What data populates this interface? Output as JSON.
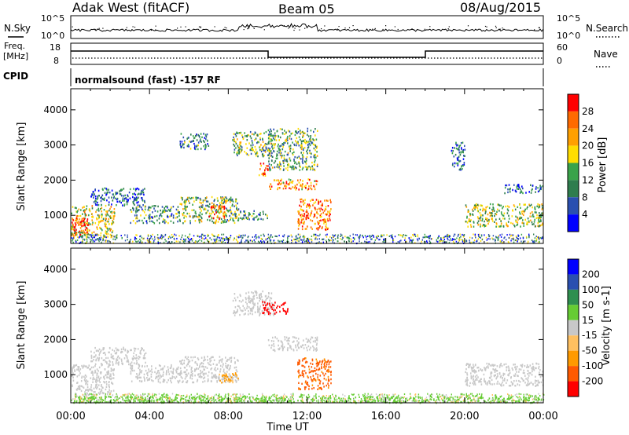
{
  "header": {
    "station": "Adak West (fitACF)",
    "beam": "Beam 05",
    "date": "08/Aug/2015"
  },
  "panels": {
    "nsky_label": "N.Sky",
    "nsky_ticks": [
      "10^5",
      "10^0"
    ],
    "nsearch_label": "N.Search",
    "nsearch_ticks": [
      "10^5",
      "10^0"
    ],
    "freq_label_1": "Freq.",
    "freq_label_2": "[MHz]",
    "freq_ticks": [
      "18",
      "8"
    ],
    "nave_label": "Nave",
    "nave_ticks": [
      "60",
      "0"
    ],
    "cpid_label": "CPID",
    "cpid_text": "normalsound (fast) -157 RF"
  },
  "colors": {
    "power_scale": [
      "#0000ff",
      "#2a4fb0",
      "#2f7d4e",
      "#3aa34a",
      "#ffdd00",
      "#ffa000",
      "#ff6a00",
      "#ff0000"
    ],
    "velocity_scale": [
      "#ff0000",
      "#ff5a00",
      "#ff9a00",
      "#ffc060",
      "#c8c8c8",
      "#66cc33",
      "#2f8f4f",
      "#2a4fb0",
      "#0000ff"
    ]
  },
  "chart_data": [
    {
      "type": "heatmap",
      "name": "power",
      "xlabel": "",
      "ylabel": "Slant Range [km]",
      "x_ticks": [
        "00:00",
        "04:00",
        "08:00",
        "12:00",
        "16:00",
        "20:00",
        "00:00"
      ],
      "x_range_hours": [
        0,
        24
      ],
      "ylim": [
        200,
        4600
      ],
      "y_ticks": [
        1000,
        2000,
        3000,
        4000
      ],
      "colorbar_label": "Power [dB]",
      "colorbar_ticks": [
        4,
        8,
        12,
        16,
        20,
        24,
        28
      ],
      "colorbar_range": [
        0,
        32
      ],
      "regions": [
        {
          "t0": 0.0,
          "t1": 2.2,
          "r0": 400,
          "r1": 1300,
          "level": 0.55
        },
        {
          "t0": 0.0,
          "t1": 0.9,
          "r0": 450,
          "r1": 1000,
          "level": 0.9
        },
        {
          "t0": 1.0,
          "t1": 3.8,
          "r0": 1300,
          "r1": 1800,
          "level": 0.25
        },
        {
          "t0": 3.0,
          "t1": 5.5,
          "r0": 800,
          "r1": 1300,
          "level": 0.35
        },
        {
          "t0": 5.5,
          "t1": 7.0,
          "r0": 2900,
          "r1": 3350,
          "level": 0.3
        },
        {
          "t0": 5.5,
          "t1": 8.5,
          "r0": 800,
          "r1": 1550,
          "level": 0.45
        },
        {
          "t0": 7.0,
          "t1": 7.8,
          "r0": 900,
          "r1": 1300,
          "level": 0.8
        },
        {
          "t0": 8.0,
          "t1": 10.0,
          "r0": 900,
          "r1": 1150,
          "level": 0.35
        },
        {
          "t0": 8.2,
          "t1": 10.3,
          "r0": 2700,
          "r1": 3400,
          "level": 0.4
        },
        {
          "t0": 9.5,
          "t1": 10.0,
          "r0": 2100,
          "r1": 2500,
          "level": 0.8
        },
        {
          "t0": 10.0,
          "t1": 12.5,
          "r0": 1750,
          "r1": 2050,
          "level": 0.7
        },
        {
          "t0": 10.0,
          "t1": 12.5,
          "r0": 2300,
          "r1": 3500,
          "level": 0.4
        },
        {
          "t0": 11.5,
          "t1": 13.2,
          "r0": 600,
          "r1": 1500,
          "level": 0.75
        },
        {
          "t0": 20.0,
          "t1": 24.0,
          "r0": 700,
          "r1": 1350,
          "level": 0.5
        },
        {
          "t0": 22.0,
          "t1": 24.0,
          "r0": 1650,
          "r1": 1900,
          "level": 0.25
        },
        {
          "t0": 19.3,
          "t1": 20.0,
          "r0": 2300,
          "r1": 3100,
          "level": 0.25
        }
      ]
    },
    {
      "type": "heatmap",
      "name": "velocity",
      "xlabel": "Time UT",
      "ylabel": "Slant Range [km]",
      "x_ticks": [
        "00:00",
        "04:00",
        "08:00",
        "12:00",
        "16:00",
        "20:00",
        "00:00"
      ],
      "x_range_hours": [
        0,
        24
      ],
      "ylim": [
        200,
        4600
      ],
      "y_ticks": [
        1000,
        2000,
        3000,
        4000
      ],
      "colorbar_label": "Velocity [m s-1]",
      "colorbar_ticks": [
        -200,
        -100,
        -50,
        -15,
        15,
        50,
        100,
        200
      ],
      "colorbar_range": [
        -250,
        250
      ],
      "regions": [
        {
          "t0": 0.0,
          "t1": 2.2,
          "r0": 400,
          "r1": 1300,
          "level": 0.0
        },
        {
          "t0": 1.0,
          "t1": 3.8,
          "r0": 1300,
          "r1": 1800,
          "level": 0.0
        },
        {
          "t0": 3.0,
          "t1": 5.5,
          "r0": 800,
          "r1": 1300,
          "level": 0.0
        },
        {
          "t0": 5.5,
          "t1": 8.5,
          "r0": 800,
          "r1": 1550,
          "level": 0.0
        },
        {
          "t0": 7.5,
          "t1": 8.5,
          "r0": 800,
          "r1": 1100,
          "level": -60
        },
        {
          "t0": 8.2,
          "t1": 10.3,
          "r0": 2700,
          "r1": 3400,
          "level": 0.0
        },
        {
          "t0": 9.7,
          "t1": 11.0,
          "r0": 2750,
          "r1": 3100,
          "level": -220
        },
        {
          "t0": 10.0,
          "t1": 12.5,
          "r0": 1700,
          "r1": 2100,
          "level": 0.0
        },
        {
          "t0": 11.5,
          "t1": 13.2,
          "r0": 600,
          "r1": 1500,
          "level": -110
        },
        {
          "t0": 20.0,
          "t1": 24.0,
          "r0": 700,
          "r1": 1350,
          "level": 0.0
        },
        {
          "t0": 0.0,
          "t1": 24.0,
          "r0": 200,
          "r1": 400,
          "level": 30
        }
      ]
    }
  ]
}
